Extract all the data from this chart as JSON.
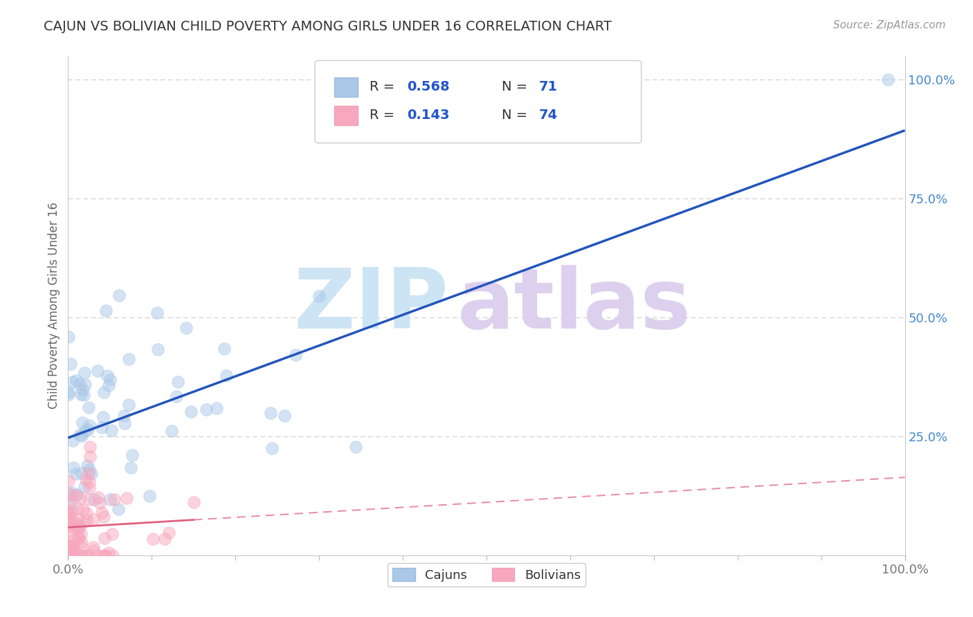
{
  "title": "CAJUN VS BOLIVIAN CHILD POVERTY AMONG GIRLS UNDER 16 CORRELATION CHART",
  "source_text": "Source: ZipAtlas.com",
  "ylabel": "Child Poverty Among Girls Under 16",
  "legend_label1": "Cajuns",
  "legend_label2": "Bolivians",
  "R1": 0.568,
  "N1": 71,
  "R2": 0.143,
  "N2": 74,
  "cajun_color": "#aac8e8",
  "bolivian_color": "#f8a8be",
  "trend1_color": "#2255bb",
  "trend2_color": "#e06080",
  "background": "#ffffff",
  "grid_color": "#cccccc",
  "title_color": "#333333",
  "source_color": "#999999",
  "axis_label_color": "#666666",
  "ytick_color": "#4488cc",
  "xtick_color": "#777777",
  "legend_text_color": "#333333",
  "legend_num_color": "#2255cc",
  "watermark_zip_color": "#cce4f4",
  "watermark_atlas_color": "#ddd0ee"
}
